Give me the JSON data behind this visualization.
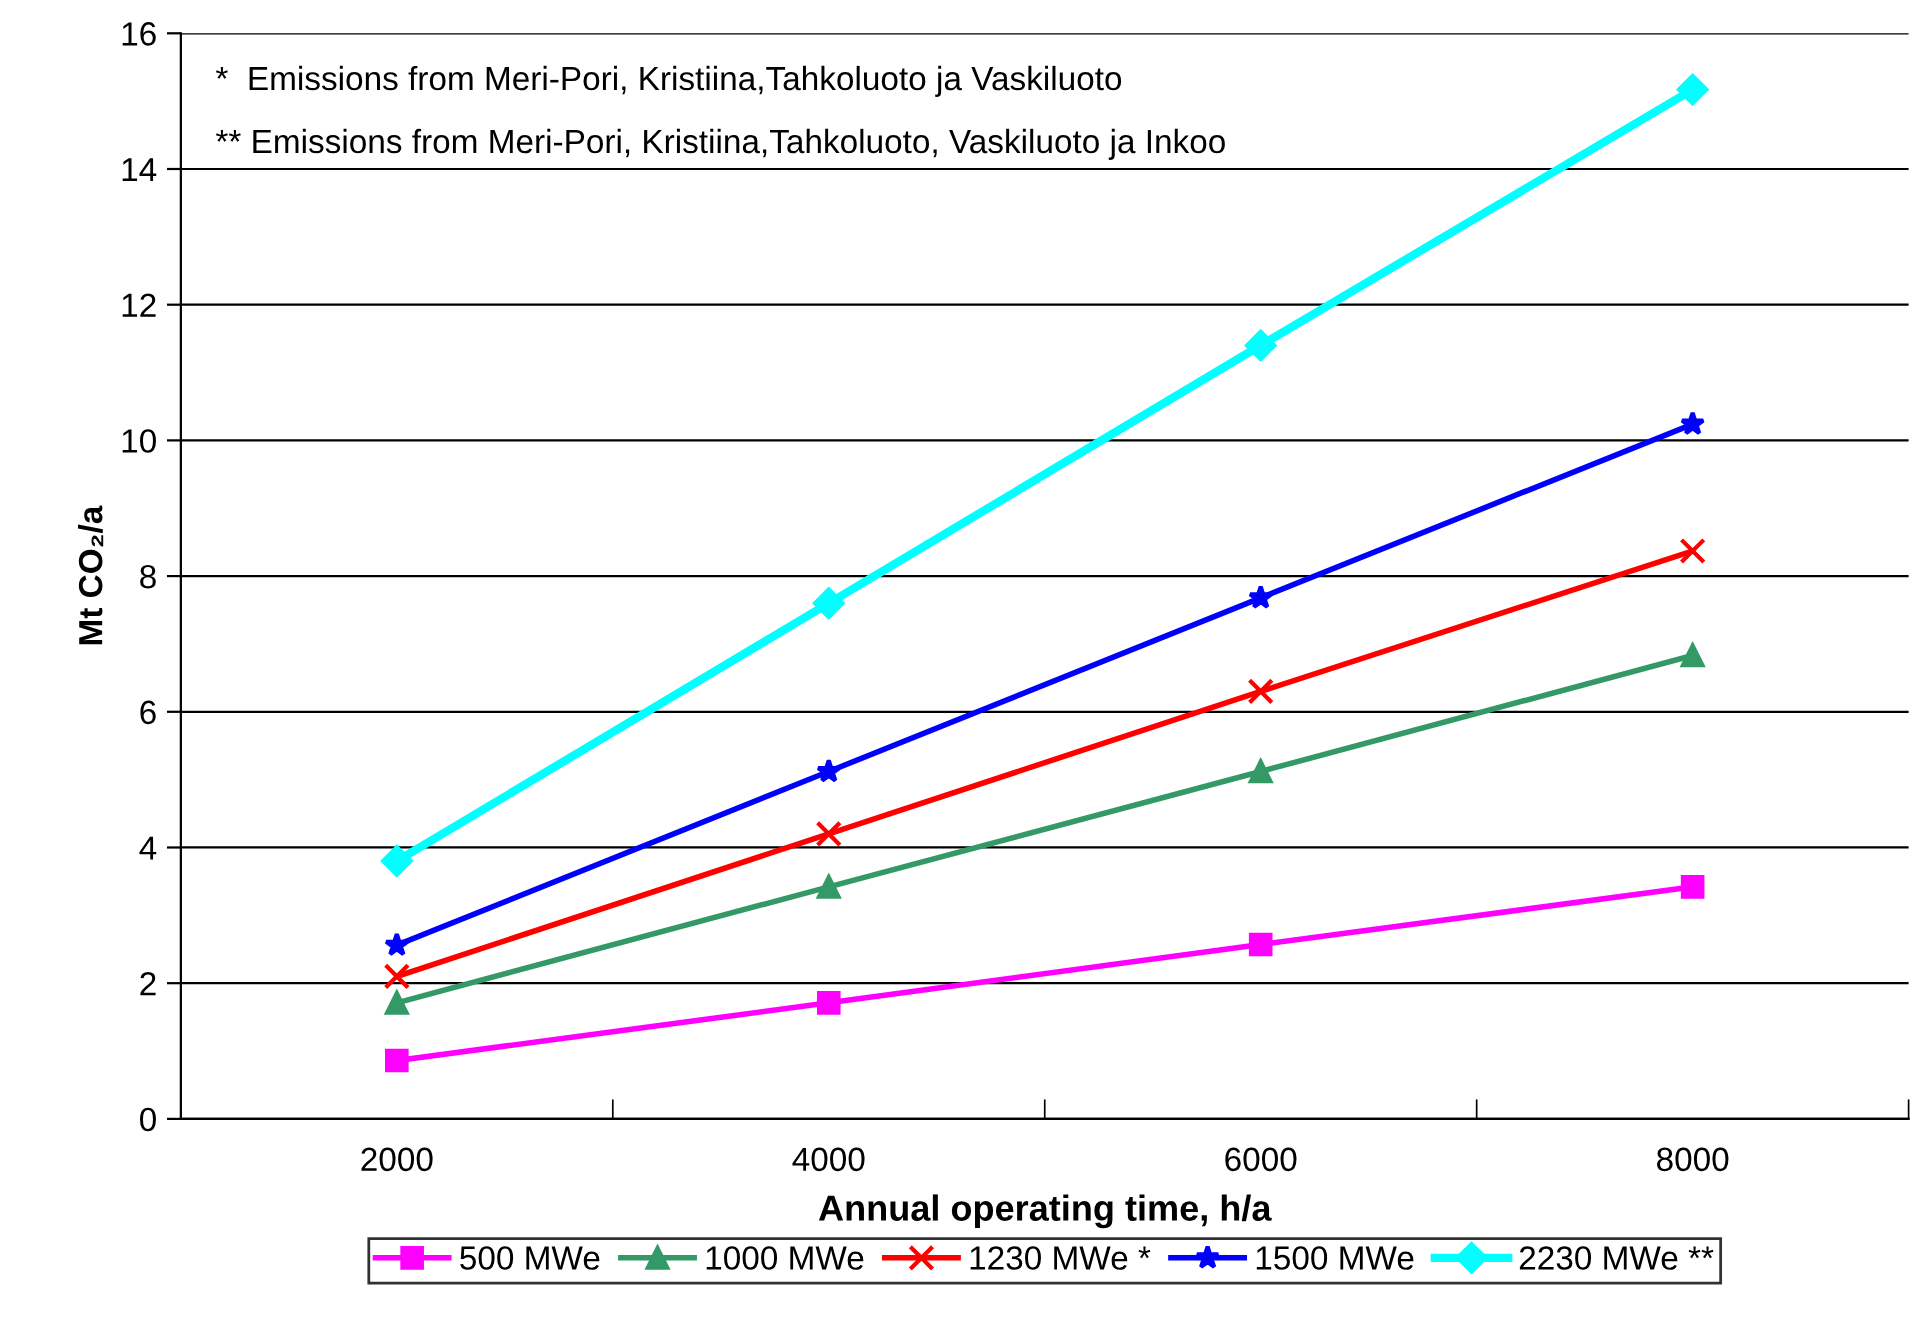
{
  "chart_data": {
    "type": "line",
    "xlabel": "Annual operating time, h/a",
    "ylabel": "Mt CO₂/a",
    "categories": [
      "2000",
      "4000",
      "6000",
      "8000"
    ],
    "series": [
      {
        "name": "500 MWe",
        "color": "#ff00ff",
        "marker": "square",
        "values": [
          0.86,
          1.71,
          2.57,
          3.42
        ]
      },
      {
        "name": "1000 MWe",
        "color": "#339966",
        "marker": "triangle",
        "values": [
          1.71,
          3.42,
          5.12,
          6.83
        ]
      },
      {
        "name": "1230 MWe *",
        "color": "#ff0000",
        "marker": "cross",
        "values": [
          2.1,
          4.2,
          6.3,
          8.37
        ]
      },
      {
        "name": "1500 MWe",
        "color": "#0000ff",
        "marker": "star",
        "values": [
          2.56,
          5.12,
          7.68,
          10.24
        ]
      },
      {
        "name": "2230 MWe **",
        "color": "#00ffff",
        "marker": "diamond",
        "values": [
          3.8,
          7.6,
          11.4,
          15.17
        ]
      }
    ],
    "ylim": [
      0,
      16
    ],
    "yticks": [
      0,
      2,
      4,
      6,
      8,
      10,
      12,
      14,
      16
    ],
    "grid": "y",
    "legend": "bottom",
    "line_style": "solid",
    "annotations": [
      "*  Emissions from Meri-Pori, Kristiina,Tahkoluoto ja Vaskiluoto",
      "** Emissions from Meri-Pori, Kristiina,Tahkoluoto, Vaskiluoto ja Inkoo"
    ]
  }
}
